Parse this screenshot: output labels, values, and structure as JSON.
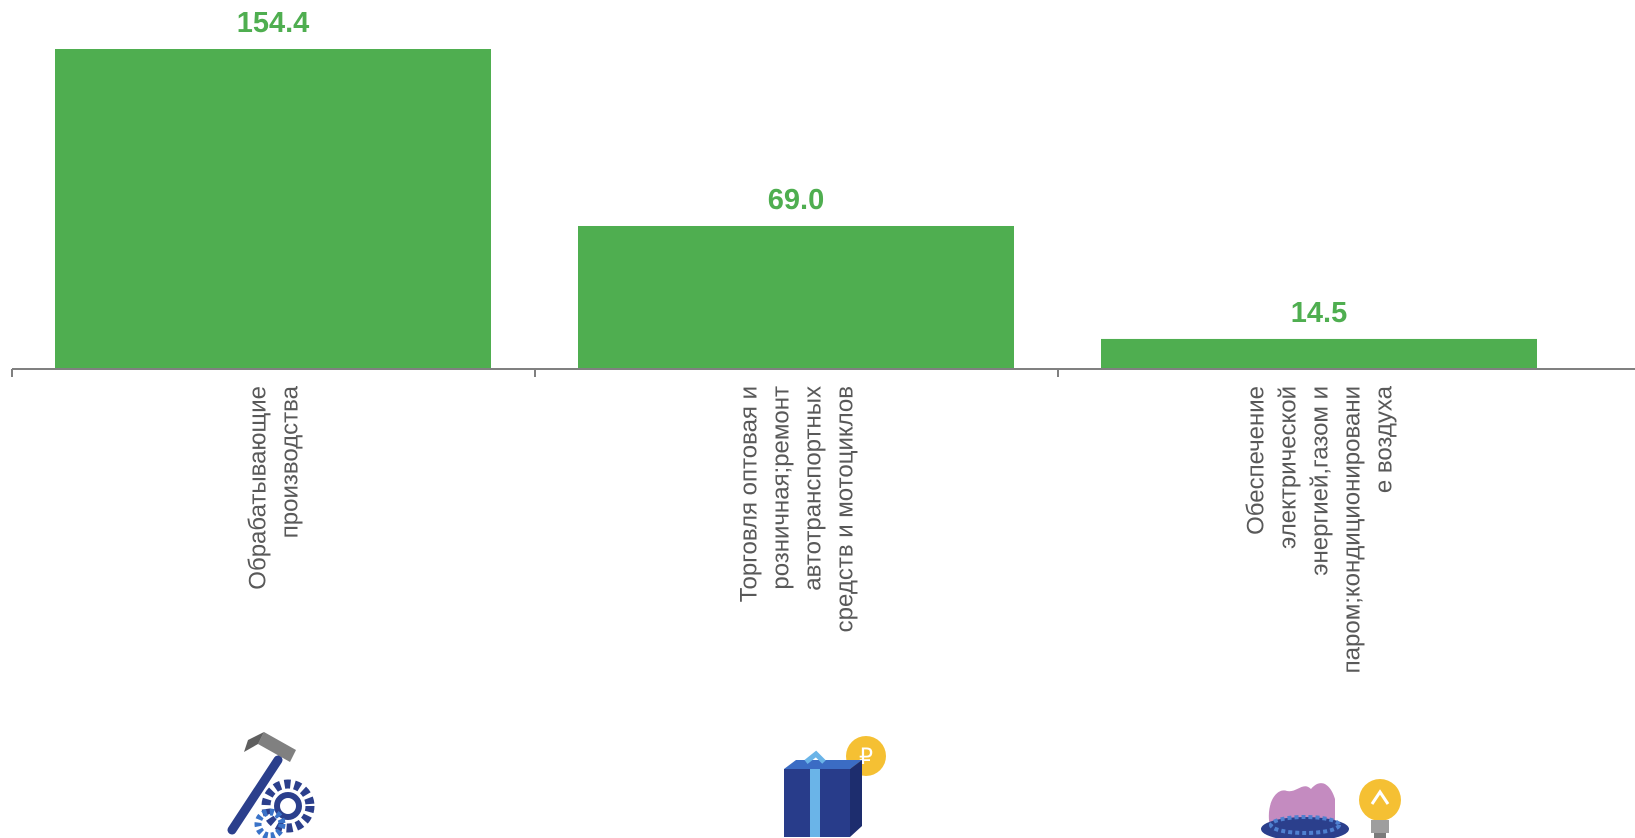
{
  "chart_data": {
    "type": "bar",
    "title": "",
    "xlabel": "",
    "ylabel": "",
    "ylim": [
      0,
      154.4
    ],
    "grid": false,
    "legend": "none",
    "categories": [
      [
        "Обрабатывающие",
        "производства"
      ],
      [
        "Торговля оптовая и",
        "розничная;ремонт",
        "автотранспортных",
        "средств и мотоциклов"
      ],
      [
        "Обеспечение",
        "электрической",
        "энергией,газом и",
        "паром;кондиционировани",
        "е воздуха"
      ]
    ],
    "values": [
      154.4,
      69.0,
      14.5
    ],
    "value_labels": [
      "154.4",
      "69.0",
      "14.5"
    ],
    "icons": [
      "hammer-gear-icon",
      "gift-box-coin-icon",
      "gas-burner-lightbulb-icon"
    ]
  },
  "colors": {
    "bar": "#4fae50",
    "value_label": "#4fae50",
    "axis": "#808080",
    "category_text": "#595959"
  }
}
